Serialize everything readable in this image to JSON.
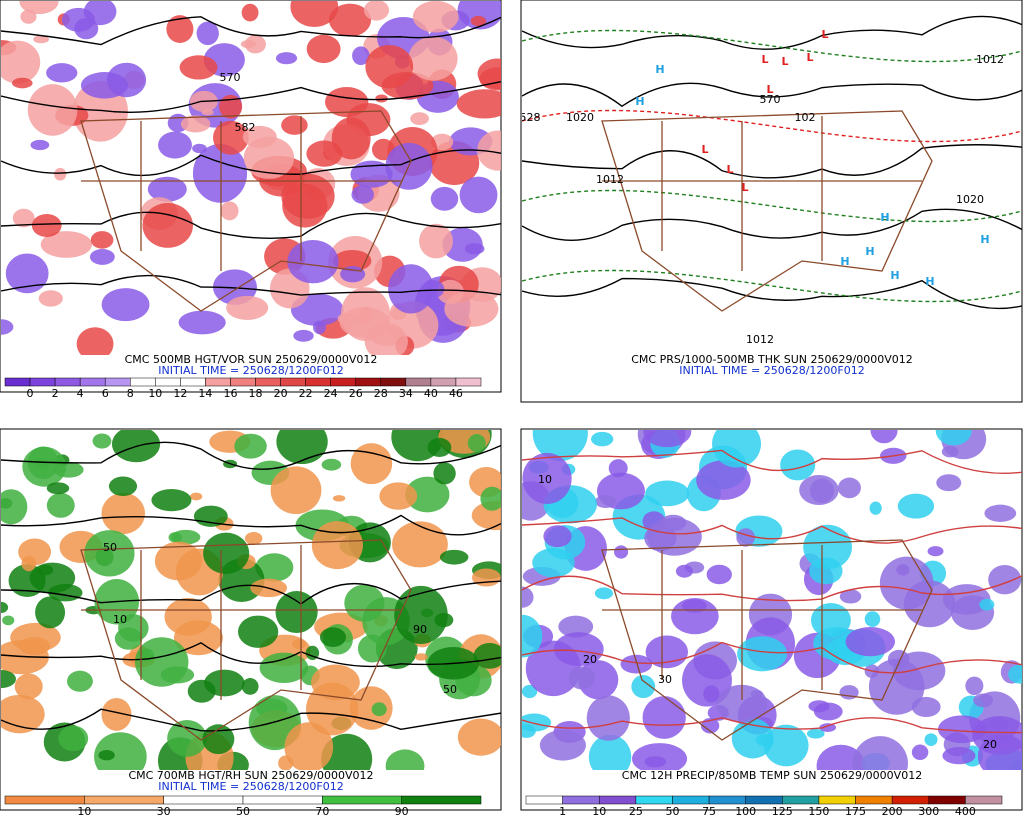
{
  "panels": [
    {
      "title": "CMC 500MB HGT/VOR SUN 250629/0000V012",
      "init": "INITIAL TIME = 250628/1200F012",
      "colorbar": {
        "labels": [
          "0",
          "2",
          "4",
          "6",
          "8",
          "10",
          "12",
          "14",
          "16",
          "18",
          "20",
          "22",
          "24",
          "26",
          "28",
          "34",
          "40",
          "46"
        ],
        "colors": [
          "#6a2fd0",
          "#7c44dc",
          "#8e5ae4",
          "#a276ea",
          "#b895f0",
          "#ffffff",
          "#ffffff",
          "#ffffff",
          "#f4a0a0",
          "#f08080",
          "#ea6060",
          "#e04848",
          "#d83030",
          "#c82020",
          "#a01010",
          "#801010",
          "#b08090",
          "#d0a0b0",
          "#f0c0d0"
        ]
      },
      "map_labels": [
        "570",
        "582"
      ]
    },
    {
      "title": "CMC PRS/1000-500MB THK SUN 250629/0000V012",
      "init": "INITIAL TIME = 250628/1200F012",
      "map_labels": [
        "H",
        "H",
        "H",
        "H",
        "H",
        "H",
        "H",
        "H",
        "L",
        "L",
        "L",
        "L",
        "L",
        "L",
        "L",
        "L",
        "1020",
        "1012",
        "1012",
        "1020",
        "1012",
        "528",
        "570",
        "102"
      ]
    },
    {
      "title": "CMC 700MB HGT/RH SUN 250629/0000V012",
      "init": "INITIAL TIME = 250628/1200F012",
      "colorbar": {
        "labels": [
          "10",
          "30",
          "50",
          "70",
          "90"
        ],
        "colors": [
          "#f08a40",
          "#f5a868",
          "#ffffff",
          "#ffffff",
          "#40c040",
          "#108010"
        ]
      },
      "map_labels": [
        "50",
        "90",
        "10",
        "50"
      ]
    },
    {
      "title": "CMC 12H PRECIP/850MB TEMP SUN 250629/0000V012",
      "colorbar": {
        "labels": [
          "1",
          "10",
          "25",
          "50",
          "75",
          "100",
          "125",
          "150",
          "175",
          "200",
          "300",
          "400"
        ],
        "colors": [
          "#ffffff",
          "#9070e0",
          "#8050d0",
          "#30d8f0",
          "#20b0e0",
          "#2090d0",
          "#1070b0",
          "#20a0a0",
          "#f0d000",
          "#f08000",
          "#d02000",
          "#800000",
          "#c090a0"
        ]
      },
      "map_labels": [
        "10",
        "20",
        "30",
        "20"
      ]
    }
  ]
}
